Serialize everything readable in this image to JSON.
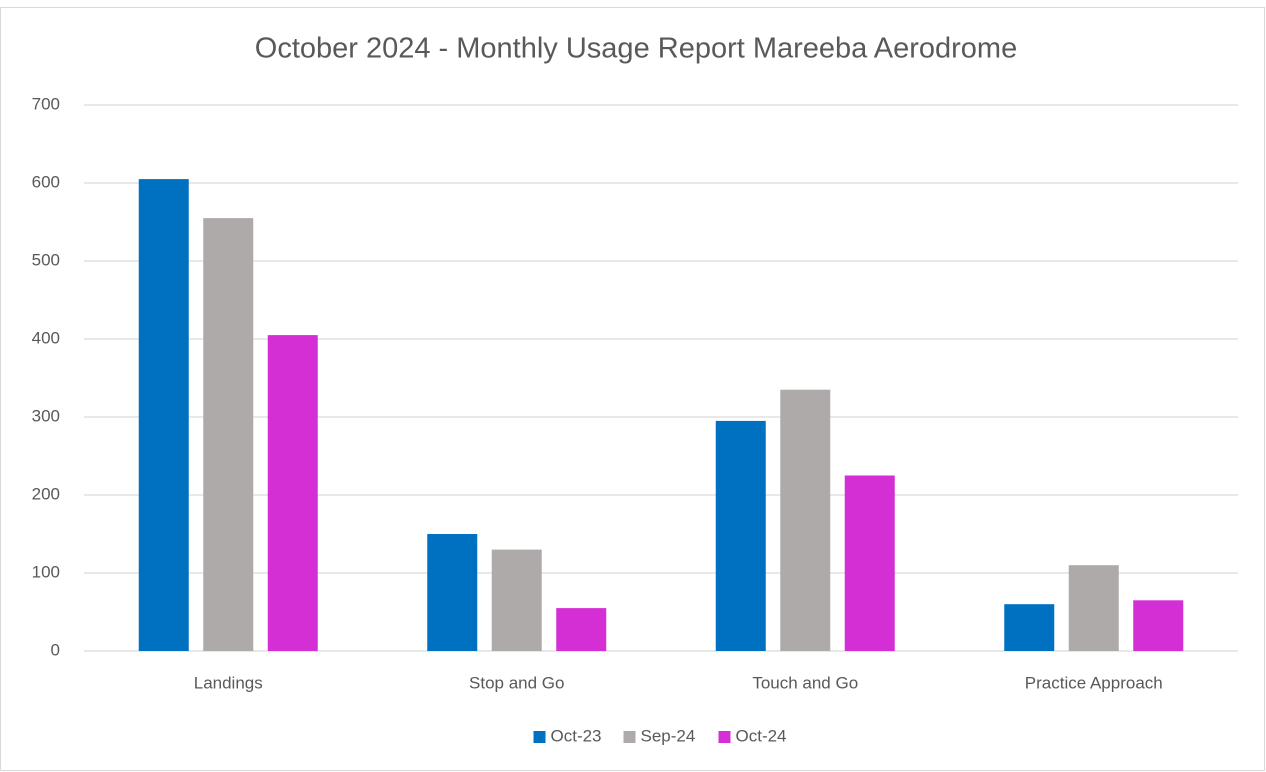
{
  "chart_data": {
    "type": "bar",
    "title": "October 2024 - Monthly Usage Report Mareeba Aerodrome",
    "categories": [
      "Landings",
      "Stop and Go",
      "Touch and Go",
      "Practice Approach"
    ],
    "series": [
      {
        "name": "Oct-23",
        "color": "#0070c0",
        "values": [
          605,
          150,
          295,
          60
        ]
      },
      {
        "name": "Sep-24",
        "color": "#aeaaaa",
        "values": [
          555,
          130,
          335,
          110
        ]
      },
      {
        "name": "Oct-24",
        "color": "#d42fd4",
        "values": [
          405,
          55,
          225,
          65
        ]
      }
    ],
    "ylim": [
      0,
      700
    ],
    "yticks": [
      0,
      100,
      200,
      300,
      400,
      500,
      600,
      700
    ],
    "grid": true,
    "legend": "bottom"
  }
}
